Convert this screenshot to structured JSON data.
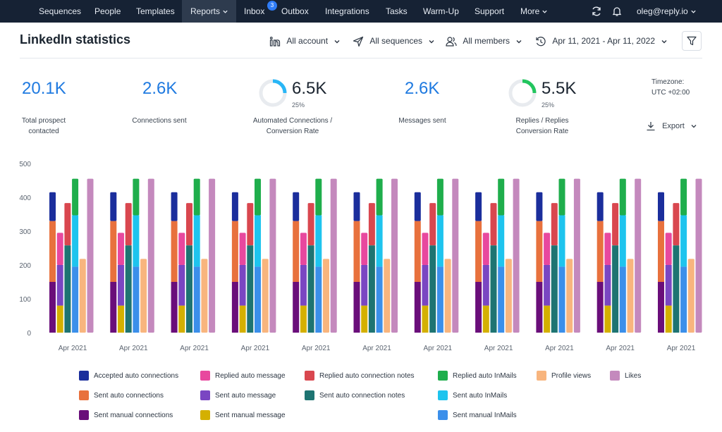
{
  "nav": {
    "items": [
      {
        "label": "Sequences",
        "active": false
      },
      {
        "label": "People",
        "active": false
      },
      {
        "label": "Templates",
        "active": false
      },
      {
        "label": "Reports",
        "active": true
      },
      {
        "label": "Inbox",
        "active": false
      },
      {
        "label": "Outbox",
        "active": false
      },
      {
        "label": "Integrations",
        "active": false
      },
      {
        "label": "Tasks",
        "active": false
      },
      {
        "label": "Warm-Up",
        "active": false
      },
      {
        "label": "Support",
        "active": false
      },
      {
        "label": "More",
        "active": false
      }
    ],
    "inbox_badge": "3",
    "user": "oleg@reply.io"
  },
  "page": {
    "title": "LinkedIn statistics"
  },
  "filters": {
    "account": "All account",
    "sequences": "All sequences",
    "members": "All members",
    "date_range": "Apr 11, 2021 - Apr 11, 2022"
  },
  "stats": [
    {
      "value": "20.1K",
      "label1": "Total prospect",
      "label2": "contacted"
    },
    {
      "value": "2.6K",
      "label1": "Connections sent",
      "label2": ""
    },
    {
      "value": "6.5K",
      "pct": "25%",
      "ring_fraction": 0.25,
      "label1": "Automated Connections /",
      "label2": "Conversion Rate"
    },
    {
      "value": "2.6K",
      "label1": "Messages sent",
      "label2": ""
    },
    {
      "value": "5.5K",
      "pct": "25%",
      "ring_fraction": 0.25,
      "label1": "Replies / Replies",
      "label2": "Conversion Rate"
    }
  ],
  "timezone": {
    "label": "Timezone:",
    "value": "UTC +02:00"
  },
  "export_label": "Export",
  "colors": {
    "accent": "#1f7ae0",
    "nav_bg": "#162234",
    "ring_blue": "#29b6f6",
    "ring_green": "#22c55e"
  },
  "chart_data": {
    "type": "bar",
    "stacked_groups": true,
    "ylim": [
      0,
      500
    ],
    "yticks": [
      0,
      100,
      200,
      300,
      400,
      500
    ],
    "categories": [
      "Apr 2021",
      "Apr 2021",
      "Apr 2021",
      "Apr 2021",
      "Apr 2021",
      "Apr 2021",
      "Apr 2021",
      "Apr 2021",
      "Apr 2021",
      "Apr 2021",
      "Apr 2021"
    ],
    "bars": [
      {
        "name": "Connections",
        "segments": [
          {
            "series": "Sent manual connections",
            "value": 150,
            "color": "#6a0e7a"
          },
          {
            "series": "Sent auto connections",
            "value": 180,
            "color": "#e8713d"
          },
          {
            "series": "Accepted auto connections",
            "value": 85,
            "color": "#1b2e9c"
          }
        ]
      },
      {
        "name": "Messages",
        "segments": [
          {
            "series": "Sent manual message",
            "value": 80,
            "color": "#d4b000"
          },
          {
            "series": "Sent auto message",
            "value": 120,
            "color": "#7a46c2"
          },
          {
            "series": "Replied auto message",
            "value": 95,
            "color": "#e8489e"
          }
        ]
      },
      {
        "name": "Connection notes",
        "segments": [
          {
            "series": "Sent auto connection notes",
            "value": 258,
            "color": "#1e7472"
          },
          {
            "series": "Replied auto connection notes",
            "value": 125,
            "color": "#d9474f"
          }
        ]
      },
      {
        "name": "InMails",
        "segments": [
          {
            "series": "Sent manual InMails",
            "value": 195,
            "color": "#3b8fea"
          },
          {
            "series": "Sent auto InMails",
            "value": 152,
            "color": "#1ec4ee"
          },
          {
            "series": "Replied auto InMails",
            "value": 108,
            "color": "#1fae4c"
          }
        ]
      },
      {
        "name": "Profile views",
        "segments": [
          {
            "series": "Profile views",
            "value": 218,
            "color": "#f8b57e"
          }
        ]
      },
      {
        "name": "Likes",
        "segments": [
          {
            "series": "Likes",
            "value": 455,
            "color": "#c489bd"
          }
        ]
      }
    ]
  },
  "legend": [
    {
      "label": "Accepted auto connections",
      "color": "#1b2e9c"
    },
    {
      "label": "Replied auto message",
      "color": "#e8489e"
    },
    {
      "label": "Replied auto connection notes",
      "color": "#d9474f"
    },
    {
      "label": "Replied auto InMails",
      "color": "#1fae4c"
    },
    {
      "label": "Profile views",
      "color": "#f8b57e"
    },
    {
      "label": "Likes",
      "color": "#c489bd"
    },
    {
      "label": "Sent auto connections",
      "color": "#e8713d"
    },
    {
      "label": "Sent auto message",
      "color": "#7a46c2"
    },
    {
      "label": "Sent auto connection notes",
      "color": "#1e7472"
    },
    {
      "label": "Sent auto InMails",
      "color": "#1ec4ee"
    },
    {
      "label": "Sent manual connections",
      "color": "#6a0e7a"
    },
    {
      "label": "Sent manual message",
      "color": "#d4b000"
    },
    {
      "label": "Sent manual InMails",
      "color": "#3b8fea"
    }
  ]
}
